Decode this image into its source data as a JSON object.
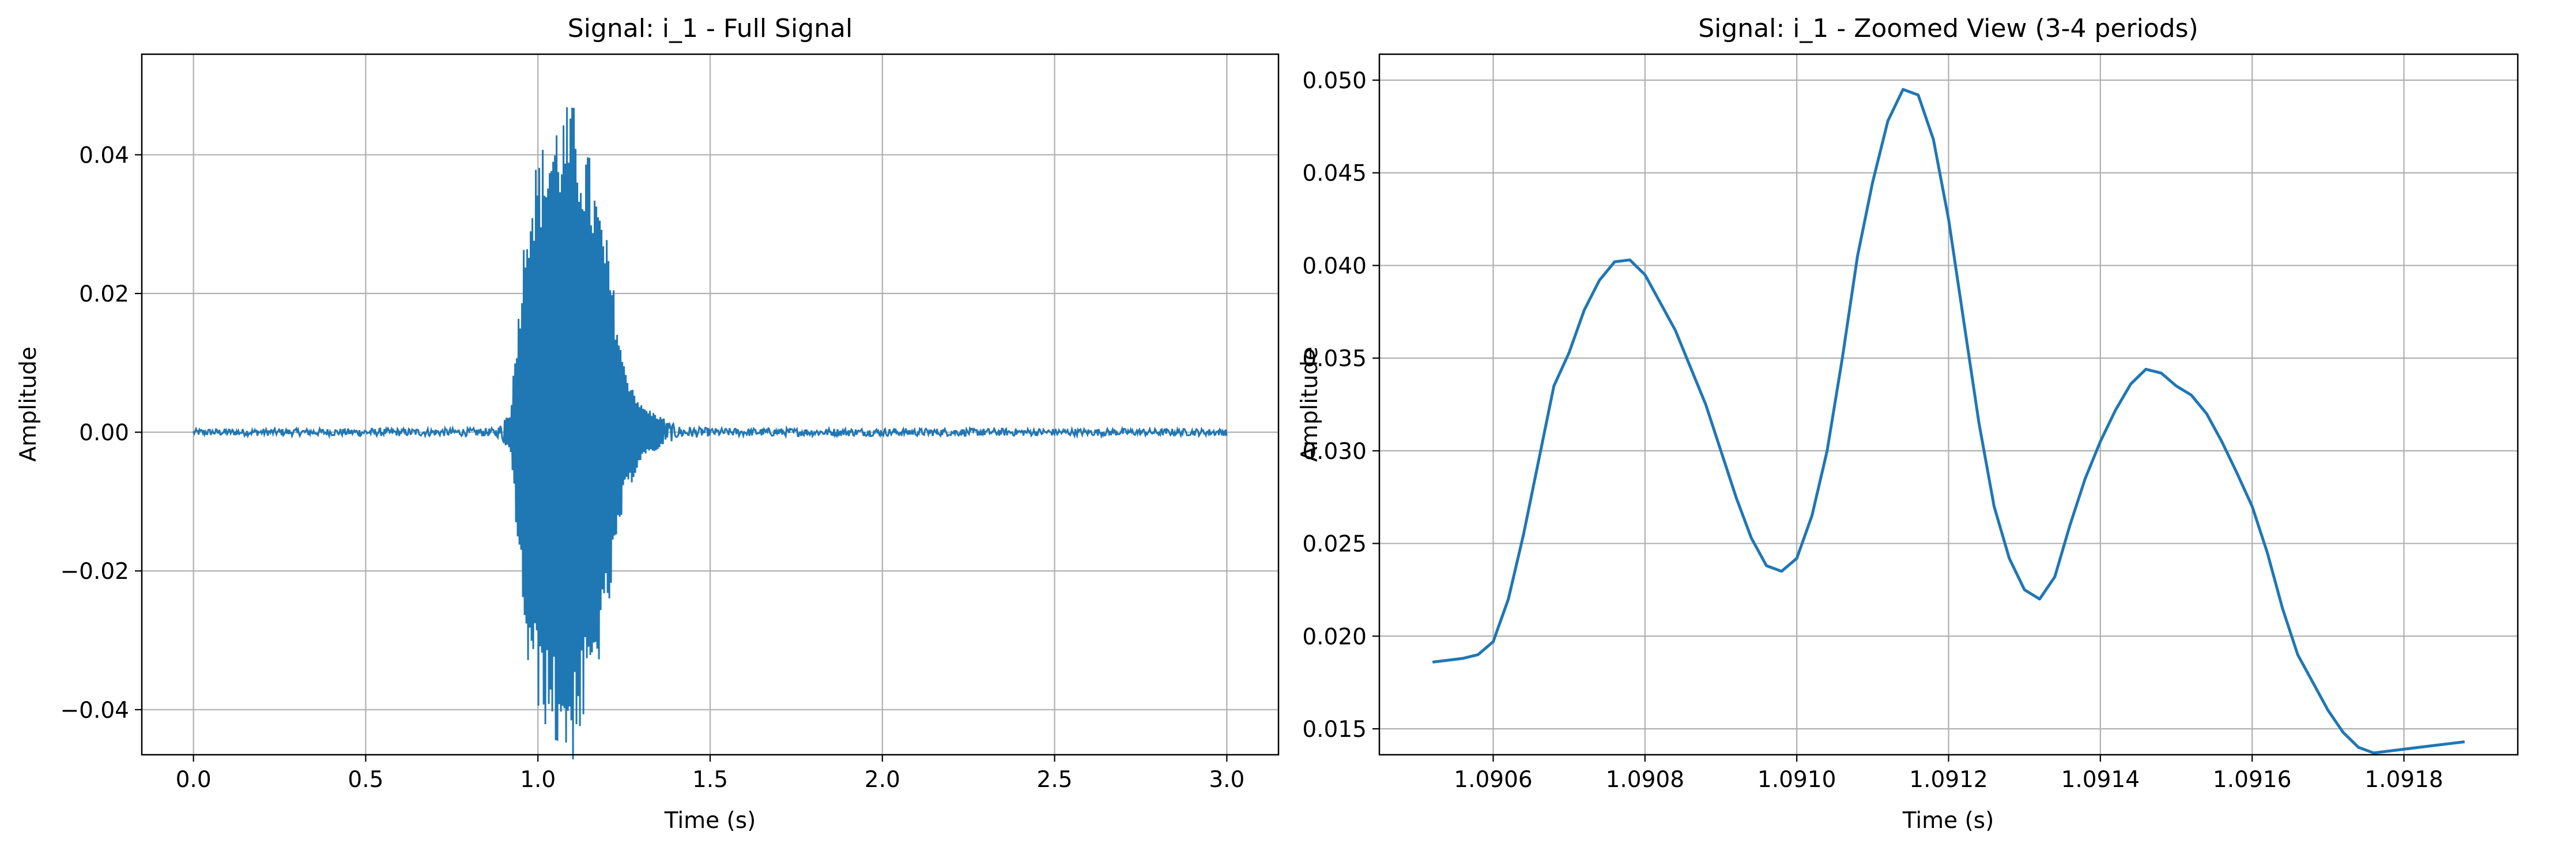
{
  "chart_data": [
    {
      "type": "line",
      "title": "Signal: i_1 - Full Signal",
      "xlabel": "Time (s)",
      "ylabel": "Amplitude",
      "xlim": [
        -0.15,
        3.15
      ],
      "ylim": [
        -0.0465,
        0.0545
      ],
      "xticks": [
        0.0,
        0.5,
        1.0,
        1.5,
        2.0,
        2.5,
        3.0
      ],
      "xtick_labels": [
        "0.0",
        "0.5",
        "1.0",
        "1.5",
        "2.0",
        "2.5",
        "3.0"
      ],
      "yticks": [
        -0.04,
        -0.02,
        0.0,
        0.02,
        0.04
      ],
      "ytick_labels": [
        "−0.04",
        "−0.02",
        "0.00",
        "0.02",
        "0.04"
      ],
      "grid": true,
      "color": "#1f77b4",
      "series": [
        {
          "x_range": [
            0.0,
            3.0
          ],
          "noise_level": 0.0005,
          "envelope": [
            [
              0.0,
              0.0005
            ],
            [
              0.88,
              0.0006
            ],
            [
              0.92,
              0.003
            ],
            [
              0.95,
              0.022
            ],
            [
              0.97,
              0.035
            ],
            [
              1.0,
              0.04
            ],
            [
              1.05,
              0.046
            ],
            [
              1.1,
              0.048
            ],
            [
              1.15,
              0.04
            ],
            [
              1.2,
              0.028
            ],
            [
              1.25,
              0.01
            ],
            [
              1.3,
              0.004
            ],
            [
              1.4,
              0.001
            ],
            [
              1.5,
              0.0006
            ],
            [
              3.0,
              0.0005
            ]
          ]
        }
      ]
    },
    {
      "type": "line",
      "title": "Signal: i_1 - Zoomed View (3-4 periods)",
      "xlabel": "Time (s)",
      "ylabel": "Amplitude",
      "xlim": [
        1.09045,
        1.09195
      ],
      "ylim": [
        0.0136,
        0.0514
      ],
      "xticks": [
        1.0906,
        1.0908,
        1.091,
        1.0912,
        1.0914,
        1.0916,
        1.0918
      ],
      "xtick_labels": [
        "1.0906",
        "1.0908",
        "1.0910",
        "1.0912",
        "1.0914",
        "1.0916",
        "1.0918"
      ],
      "yticks": [
        0.015,
        0.02,
        0.025,
        0.03,
        0.035,
        0.04,
        0.045,
        0.05
      ],
      "ytick_labels": [
        "0.015",
        "0.020",
        "0.025",
        "0.030",
        "0.035",
        "0.040",
        "0.045",
        "0.050"
      ],
      "grid": true,
      "color": "#1f77b4",
      "series": [
        {
          "x": [
            1.09052,
            1.09054,
            1.09056,
            1.09058,
            1.0906,
            1.09062,
            1.09064,
            1.09066,
            1.09068,
            1.0907,
            1.09072,
            1.09074,
            1.09076,
            1.09078,
            1.0908,
            1.09082,
            1.09084,
            1.09086,
            1.09088,
            1.0909,
            1.09092,
            1.09094,
            1.09096,
            1.09098,
            1.091,
            1.09102,
            1.09104,
            1.09106,
            1.09108,
            1.0911,
            1.09112,
            1.09114,
            1.09116,
            1.09118,
            1.0912,
            1.09122,
            1.09124,
            1.09126,
            1.09128,
            1.0913,
            1.09132,
            1.09134,
            1.09136,
            1.09138,
            1.0914,
            1.09142,
            1.09144,
            1.09146,
            1.09148,
            1.0915,
            1.09152,
            1.09154,
            1.09156,
            1.09158,
            1.0916,
            1.09162,
            1.09164,
            1.09166,
            1.09168,
            1.0917,
            1.09172,
            1.09174,
            1.09176,
            1.09178,
            1.0918,
            1.09182,
            1.09184,
            1.09186,
            1.09188
          ],
          "y": [
            0.0186,
            0.0187,
            0.0188,
            0.019,
            0.0197,
            0.022,
            0.0255,
            0.0295,
            0.0335,
            0.0353,
            0.0376,
            0.0392,
            0.0402,
            0.0403,
            0.0395,
            0.038,
            0.0365,
            0.0345,
            0.0325,
            0.03,
            0.0275,
            0.0253,
            0.0238,
            0.0235,
            0.0242,
            0.0265,
            0.03,
            0.035,
            0.0405,
            0.0445,
            0.0478,
            0.0495,
            0.0492,
            0.0468,
            0.0425,
            0.037,
            0.0315,
            0.027,
            0.0242,
            0.0225,
            0.022,
            0.0232,
            0.026,
            0.0285,
            0.0305,
            0.0322,
            0.0336,
            0.0344,
            0.0342,
            0.0335,
            0.033,
            0.032,
            0.0305,
            0.0288,
            0.027,
            0.0245,
            0.0215,
            0.019,
            0.0175,
            0.016,
            0.0148,
            0.014,
            0.0137,
            0.0138,
            0.0139,
            0.014,
            0.0141,
            0.0142,
            0.0143
          ]
        }
      ]
    }
  ]
}
